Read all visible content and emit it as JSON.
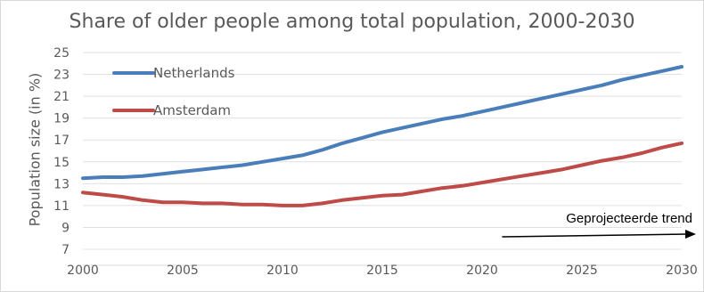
{
  "chart_data": {
    "type": "line",
    "title": "Share of older people among total population, 2000-2030",
    "ylabel": "Population size (in %)",
    "xlabel": "",
    "xlim": [
      2000,
      2030
    ],
    "ylim": [
      7,
      25
    ],
    "x_ticks": [
      2000,
      2005,
      2010,
      2015,
      2020,
      2025,
      2030
    ],
    "y_ticks": [
      7,
      9,
      11,
      13,
      15,
      17,
      19,
      21,
      23,
      25
    ],
    "grid": "horizontal",
    "legend": "top-left",
    "series": [
      {
        "name": "Netherlands",
        "color": "#4a7ebb",
        "x": [
          2000,
          2001,
          2002,
          2003,
          2004,
          2005,
          2006,
          2007,
          2008,
          2009,
          2010,
          2011,
          2012,
          2013,
          2014,
          2015,
          2016,
          2017,
          2018,
          2019,
          2020,
          2021,
          2022,
          2023,
          2024,
          2025,
          2026,
          2027,
          2028,
          2029,
          2030
        ],
        "values": [
          13.5,
          13.6,
          13.6,
          13.7,
          13.9,
          14.1,
          14.3,
          14.5,
          14.7,
          15.0,
          15.3,
          15.6,
          16.1,
          16.7,
          17.2,
          17.7,
          18.1,
          18.5,
          18.9,
          19.2,
          19.6,
          20.0,
          20.4,
          20.8,
          21.2,
          21.6,
          22.0,
          22.5,
          22.9,
          23.3,
          23.7
        ]
      },
      {
        "name": "Amsterdam",
        "color": "#be4b48",
        "x": [
          2000,
          2001,
          2002,
          2003,
          2004,
          2005,
          2006,
          2007,
          2008,
          2009,
          2010,
          2011,
          2012,
          2013,
          2014,
          2015,
          2016,
          2017,
          2018,
          2019,
          2020,
          2021,
          2022,
          2023,
          2024,
          2025,
          2026,
          2027,
          2028,
          2029,
          2030
        ],
        "values": [
          12.2,
          12.0,
          11.8,
          11.5,
          11.3,
          11.3,
          11.2,
          11.2,
          11.1,
          11.1,
          11.0,
          11.0,
          11.2,
          11.5,
          11.7,
          11.9,
          12.0,
          12.3,
          12.6,
          12.8,
          13.1,
          13.4,
          13.7,
          14.0,
          14.3,
          14.7,
          15.1,
          15.4,
          15.8,
          16.3,
          16.7
        ]
      }
    ],
    "annotations": [
      {
        "text": "Geprojecteerde trend",
        "arrow_from_x": 2021,
        "arrow_to_x": 2031
      }
    ]
  }
}
